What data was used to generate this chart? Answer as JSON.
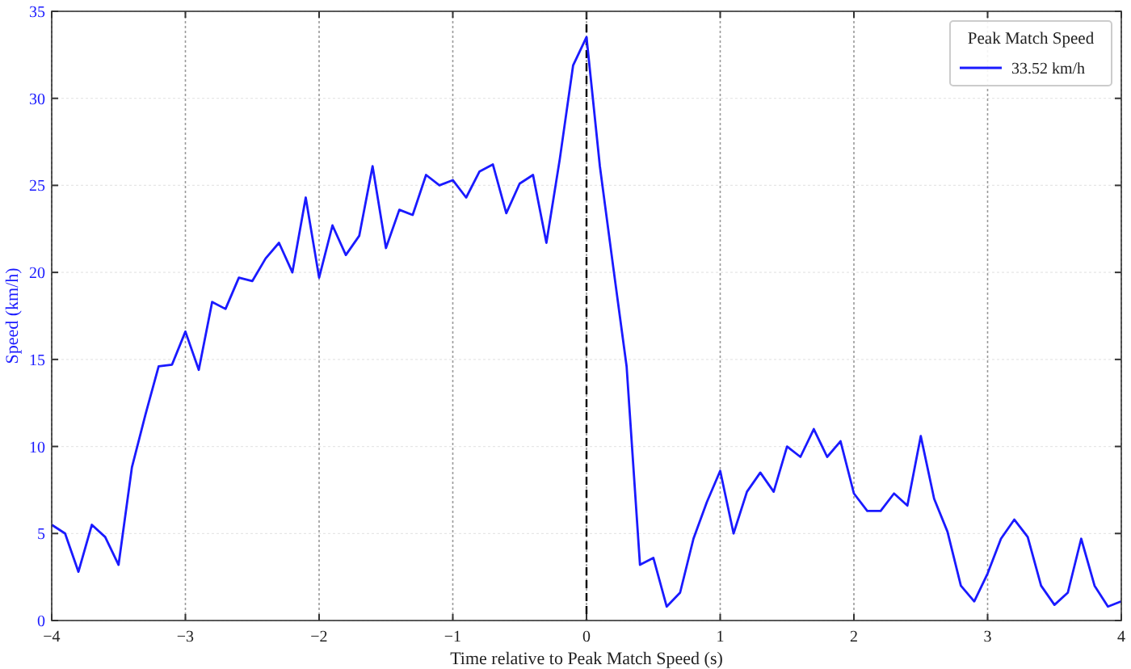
{
  "chart_data": {
    "type": "line",
    "xlabel": "Time relative to Peak Match Speed (s)",
    "ylabel": "Speed (km/h)",
    "legend_title": "Peak Match Speed",
    "legend": "top right",
    "grid": true,
    "x": [
      -4,
      -3.9,
      -3.8,
      -3.7,
      -3.6,
      -3.5,
      -3.4,
      -3.3,
      -3.2,
      -3.1,
      -3,
      -2.9,
      -2.8,
      -2.7,
      -2.6,
      -2.5,
      -2.4,
      -2.3,
      -2.2,
      -2.1,
      -2,
      -1.9,
      -1.8,
      -1.7,
      -1.6,
      -1.5,
      -1.4,
      -1.3,
      -1.2,
      -1.1,
      -1,
      -0.9,
      -0.8,
      -0.7,
      -0.6,
      -0.5,
      -0.4,
      -0.3,
      -0.2,
      -0.1,
      0,
      0.1,
      0.2,
      0.3,
      0.4,
      0.5,
      0.6,
      0.7,
      0.8,
      0.9,
      1,
      1.1,
      1.2,
      1.3,
      1.4,
      1.5,
      1.6,
      1.7,
      1.8,
      1.9,
      2,
      2.1,
      2.2,
      2.3,
      2.4,
      2.5,
      2.6,
      2.7,
      2.8,
      2.9,
      3,
      3.1,
      3.2,
      3.3,
      3.4,
      3.5,
      3.6,
      3.7,
      3.8,
      3.9,
      4
    ],
    "series": [
      {
        "name": "33.52 km/h",
        "color": "#1a1aff",
        "values": [
          5.5,
          5.0,
          2.8,
          5.5,
          4.8,
          3.2,
          8.8,
          11.8,
          14.6,
          14.7,
          16.6,
          14.4,
          18.3,
          17.9,
          19.7,
          19.5,
          20.8,
          21.7,
          20.0,
          24.3,
          19.7,
          22.7,
          21.0,
          22.1,
          26.1,
          21.4,
          23.6,
          23.3,
          25.6,
          25.0,
          25.3,
          24.3,
          25.8,
          26.2,
          23.4,
          25.1,
          25.6,
          21.7,
          26.5,
          31.9,
          33.52,
          26.1,
          20.3,
          14.6,
          3.2,
          3.6,
          0.8,
          1.6,
          4.7,
          6.8,
          8.6,
          5.0,
          7.4,
          8.5,
          7.4,
          10.0,
          9.4,
          11.0,
          9.4,
          10.3,
          7.3,
          6.3,
          6.3,
          7.3,
          6.6,
          10.6,
          7.0,
          5.1,
          2.0,
          1.1,
          2.7,
          4.7,
          5.8,
          4.8,
          2.0,
          0.9,
          1.6,
          4.7,
          2.0,
          0.8,
          1.1
        ]
      }
    ],
    "xlim": [
      -4,
      4
    ],
    "xticks": [
      {
        "value": -4,
        "label": "−4"
      },
      {
        "value": -3,
        "label": "−3"
      },
      {
        "value": -2,
        "label": "−2"
      },
      {
        "value": -1,
        "label": "−1"
      },
      0,
      1,
      2,
      3,
      4
    ],
    "ylim": [
      0,
      35
    ],
    "yticks": [
      0,
      5,
      10,
      15,
      20,
      25,
      30,
      35
    ],
    "ref_lines": [
      {
        "axis": "x",
        "value": 0,
        "color": "#000000",
        "line_style": "dashed"
      }
    ]
  }
}
